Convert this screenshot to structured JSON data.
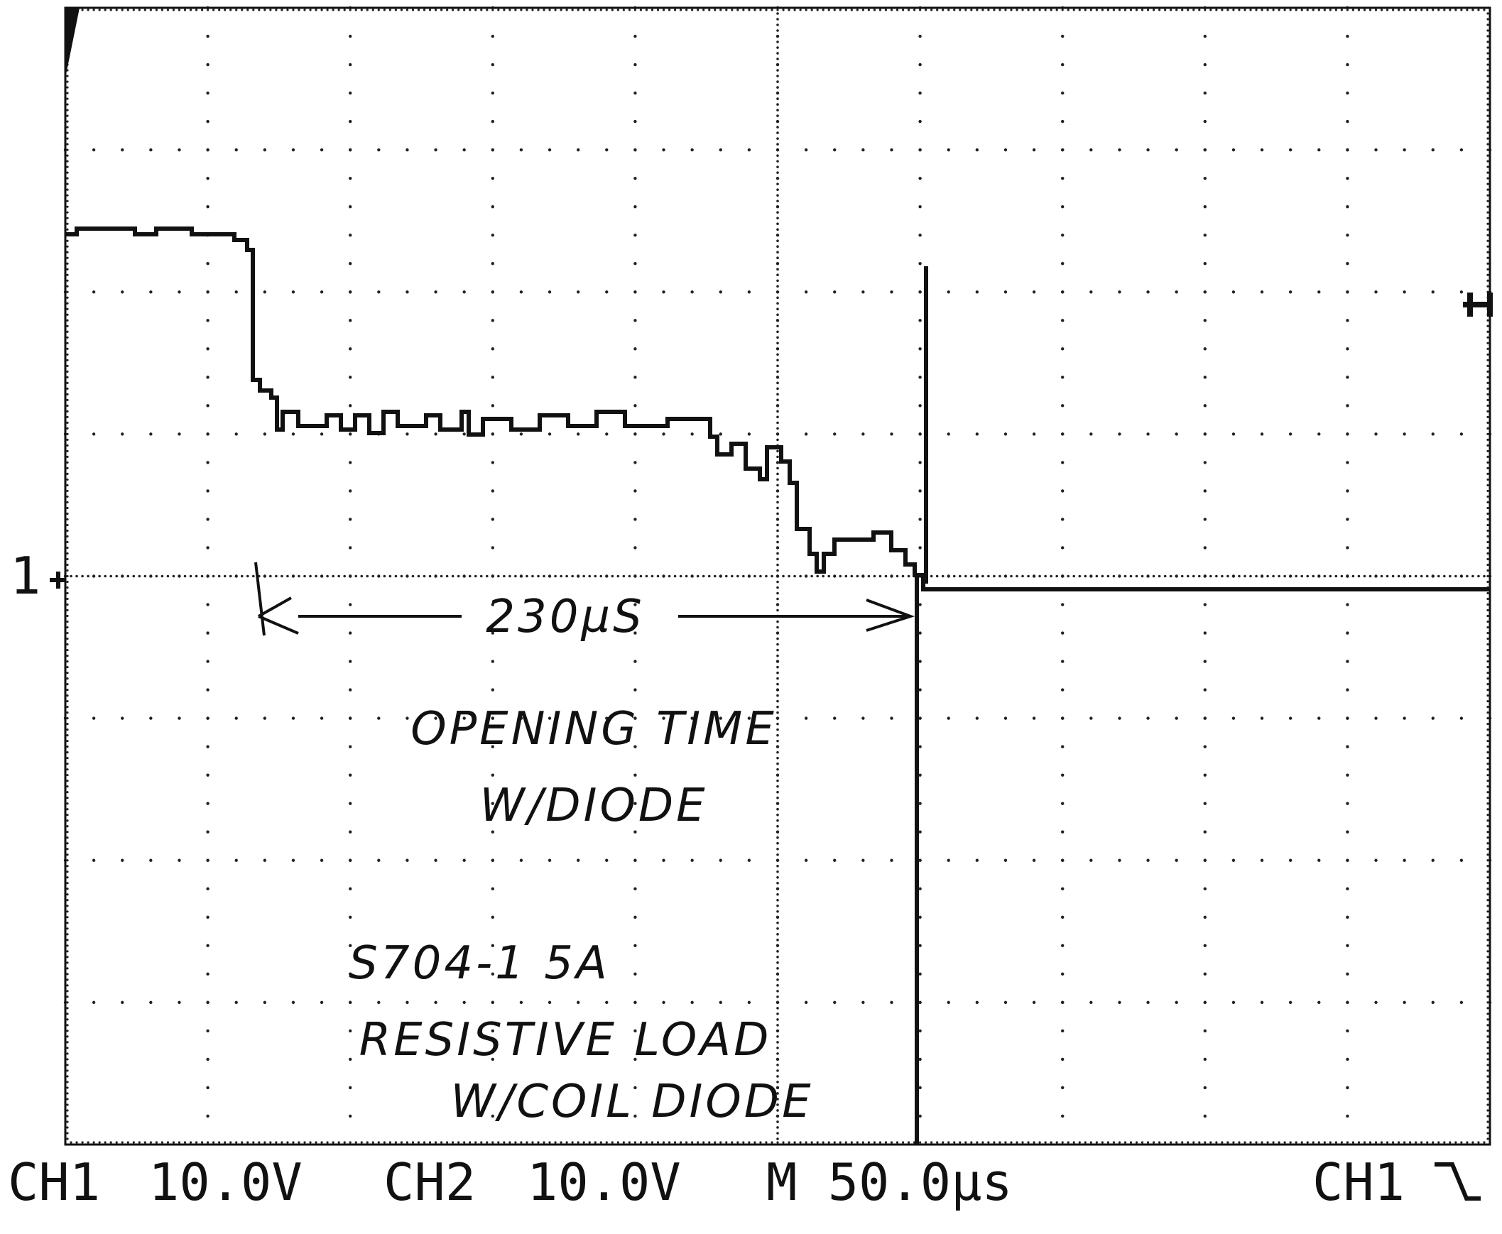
{
  "marker": "1",
  "readout": {
    "ch1_label": "CH1",
    "ch1_scale": "10.0V",
    "ch2_label": "CH2",
    "ch2_scale": "10.0V",
    "timebase": "M 50.0µs",
    "trigger_source": "CH1"
  },
  "annotations": {
    "interval": "230µS",
    "line1": "OPENING TIME",
    "line2": "W/DIODE",
    "line3": "S704-1 5A",
    "line4": "RESISTIVE LOAD",
    "line5": "W/COIL DIODE"
  }
}
